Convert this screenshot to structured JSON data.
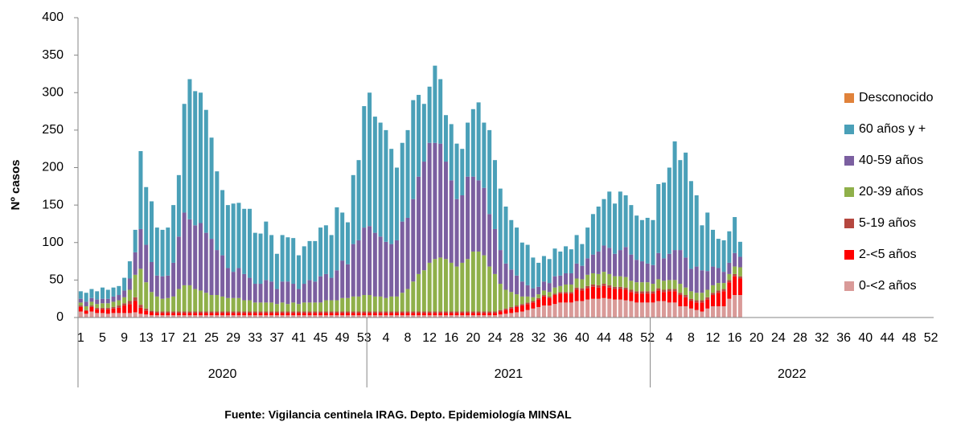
{
  "chart_data": {
    "type": "stacked_bar",
    "y_label": "Nº casos",
    "footer": "Fuente: Vigilancia centinela IRAG. Depto. Epidemiología MINSAL",
    "ylim": [
      0,
      400
    ],
    "yticks": [
      0,
      50,
      100,
      150,
      200,
      250,
      300,
      350,
      400
    ],
    "legend": "right",
    "x_groups": [
      "2020",
      "2021",
      "2022"
    ],
    "categories": [
      "1",
      null,
      null,
      null,
      "5",
      null,
      null,
      null,
      "9",
      null,
      null,
      null,
      "13",
      null,
      null,
      null,
      "17",
      null,
      null,
      null,
      "21",
      null,
      null,
      null,
      "25",
      null,
      null,
      null,
      "29",
      null,
      null,
      null,
      "33",
      null,
      null,
      null,
      "37",
      null,
      null,
      null,
      "41",
      null,
      null,
      null,
      "45",
      null,
      null,
      null,
      "49",
      null,
      null,
      null,
      "53",
      null,
      null,
      null,
      "4",
      null,
      null,
      null,
      "8",
      null,
      null,
      null,
      "12",
      null,
      null,
      null,
      "16",
      null,
      null,
      null,
      "20",
      null,
      null,
      null,
      "24",
      null,
      null,
      null,
      "28",
      null,
      null,
      null,
      "32",
      null,
      null,
      null,
      "36",
      null,
      null,
      null,
      "40",
      null,
      null,
      null,
      "44",
      null,
      null,
      null,
      "48",
      null,
      null,
      null,
      "52",
      null,
      null,
      null,
      "4",
      null,
      null,
      null,
      "8",
      null,
      null,
      null,
      "12",
      null,
      null,
      null,
      "16",
      null,
      null,
      null,
      "20",
      null,
      null,
      null,
      "24",
      null,
      null,
      null,
      "28",
      null,
      null,
      null,
      "32",
      null,
      null,
      null,
      "36",
      null,
      null,
      null,
      "40",
      null,
      null,
      null,
      "44",
      null,
      null,
      null,
      "48",
      null,
      null,
      null,
      "52"
    ],
    "series": [
      {
        "name": "0-<2 años",
        "color": "#d99a98",
        "values": [
          8,
          5,
          8,
          6,
          6,
          5,
          6,
          6,
          6,
          6,
          7,
          5,
          4,
          3,
          3,
          3,
          3,
          3,
          3,
          3,
          3,
          3,
          3,
          3,
          3,
          3,
          3,
          3,
          3,
          3,
          3,
          3,
          3,
          3,
          3,
          3,
          3,
          3,
          3,
          3,
          3,
          3,
          3,
          3,
          3,
          3,
          3,
          3,
          3,
          3,
          3,
          3,
          3,
          3,
          3,
          3,
          3,
          3,
          3,
          3,
          3,
          3,
          3,
          3,
          3,
          3,
          3,
          3,
          3,
          3,
          3,
          3,
          3,
          3,
          3,
          3,
          3,
          4,
          5,
          6,
          7,
          8,
          10,
          12,
          14,
          16,
          16,
          18,
          20,
          20,
          20,
          22,
          22,
          24,
          25,
          25,
          26,
          25,
          24,
          24,
          23,
          22,
          20,
          20,
          20,
          20,
          22,
          22,
          20,
          20,
          15,
          15,
          12,
          10,
          8,
          12,
          15,
          15,
          15,
          25,
          30,
          30,
          null,
          null,
          null,
          null,
          null,
          null,
          null,
          null,
          null,
          null,
          null,
          null,
          null,
          null,
          null,
          null,
          null,
          null,
          null,
          null,
          null,
          null,
          null,
          null,
          null,
          null,
          null,
          null,
          null,
          null,
          null,
          null,
          null,
          null,
          null
        ]
      },
      {
        "name": "2-<5 años",
        "color": "#ff0000",
        "values": [
          6,
          4,
          6,
          5,
          5,
          6,
          6,
          7,
          10,
          12,
          15,
          8,
          5,
          4,
          3,
          3,
          3,
          3,
          3,
          3,
          3,
          3,
          3,
          3,
          3,
          3,
          3,
          3,
          3,
          3,
          3,
          3,
          3,
          3,
          3,
          3,
          3,
          3,
          3,
          3,
          3,
          3,
          3,
          3,
          3,
          3,
          3,
          3,
          3,
          3,
          3,
          3,
          3,
          3,
          3,
          3,
          3,
          3,
          3,
          3,
          3,
          3,
          3,
          3,
          3,
          3,
          3,
          3,
          3,
          3,
          3,
          3,
          3,
          3,
          3,
          3,
          3,
          4,
          5,
          6,
          7,
          8,
          8,
          8,
          10,
          12,
          10,
          12,
          12,
          12,
          12,
          15,
          14,
          15,
          16,
          15,
          16,
          15,
          14,
          14,
          14,
          12,
          12,
          12,
          12,
          12,
          14,
          12,
          15,
          15,
          15,
          12,
          10,
          10,
          12,
          12,
          15,
          18,
          20,
          22,
          25,
          22,
          null,
          null,
          null,
          null,
          null,
          null,
          null,
          null,
          null,
          null,
          null,
          null,
          null,
          null,
          null,
          null,
          null,
          null,
          null,
          null,
          null,
          null,
          null,
          null,
          null,
          null,
          null,
          null,
          null,
          null,
          null,
          null,
          null,
          null,
          null
        ]
      },
      {
        "name": "5-19 años",
        "color": "#b5473f",
        "values": [
          2,
          1,
          2,
          2,
          2,
          2,
          2,
          3,
          3,
          4,
          5,
          4,
          3,
          2,
          2,
          2,
          2,
          2,
          2,
          2,
          2,
          2,
          2,
          2,
          2,
          2,
          2,
          2,
          2,
          2,
          2,
          2,
          2,
          2,
          2,
          2,
          2,
          2,
          2,
          2,
          2,
          2,
          2,
          2,
          2,
          2,
          2,
          2,
          2,
          2,
          2,
          2,
          2,
          2,
          2,
          2,
          2,
          2,
          2,
          2,
          2,
          2,
          2,
          2,
          2,
          2,
          2,
          2,
          2,
          2,
          2,
          2,
          2,
          2,
          2,
          2,
          2,
          2,
          2,
          2,
          2,
          2,
          2,
          2,
          2,
          2,
          2,
          2,
          2,
          2,
          2,
          3,
          3,
          3,
          3,
          3,
          3,
          3,
          3,
          3,
          3,
          3,
          3,
          3,
          3,
          3,
          3,
          3,
          3,
          3,
          3,
          3,
          3,
          3,
          3,
          3,
          3,
          3,
          3,
          3,
          3,
          3,
          null,
          null,
          null,
          null,
          null,
          null,
          null,
          null,
          null,
          null,
          null,
          null,
          null,
          null,
          null,
          null,
          null,
          null,
          null,
          null,
          null,
          null,
          null,
          null,
          null,
          null,
          null,
          null,
          null,
          null,
          null,
          null,
          null,
          null,
          null
        ]
      },
      {
        "name": "20-39 años",
        "color": "#8fb04a",
        "values": [
          4,
          5,
          5,
          5,
          6,
          6,
          7,
          7,
          8,
          15,
          30,
          48,
          35,
          25,
          20,
          17,
          18,
          20,
          30,
          35,
          35,
          30,
          28,
          25,
          22,
          22,
          20,
          18,
          18,
          18,
          15,
          15,
          12,
          12,
          12,
          12,
          10,
          12,
          10,
          12,
          10,
          12,
          12,
          12,
          12,
          15,
          15,
          15,
          18,
          18,
          20,
          20,
          22,
          22,
          20,
          20,
          18,
          20,
          20,
          25,
          30,
          40,
          50,
          55,
          65,
          70,
          72,
          70,
          65,
          60,
          65,
          70,
          80,
          80,
          75,
          60,
          50,
          35,
          25,
          20,
          15,
          10,
          8,
          5,
          5,
          6,
          6,
          8,
          8,
          10,
          10,
          12,
          12,
          15,
          15,
          15,
          16,
          15,
          14,
          14,
          14,
          12,
          12,
          12,
          12,
          10,
          12,
          12,
          12,
          12,
          12,
          10,
          10,
          10,
          10,
          10,
          10,
          10,
          8,
          8,
          10,
          12,
          null,
          null,
          null,
          null,
          null,
          null,
          null,
          null,
          null,
          null,
          null,
          null,
          null,
          null,
          null,
          null,
          null,
          null,
          null,
          null,
          null,
          null,
          null,
          null,
          null,
          null,
          null,
          null,
          null,
          null,
          null,
          null,
          null,
          null,
          null
        ]
      },
      {
        "name": "40-59 años",
        "color": "#7b5fa0",
        "values": [
          5,
          6,
          5,
          6,
          6,
          6,
          7,
          7,
          9,
          15,
          30,
          53,
          50,
          40,
          28,
          30,
          30,
          45,
          70,
          97,
          88,
          85,
          90,
          80,
          75,
          60,
          55,
          40,
          35,
          40,
          35,
          30,
          25,
          25,
          30,
          28,
          20,
          28,
          30,
          25,
          20,
          25,
          30,
          28,
          35,
          35,
          30,
          40,
          50,
          45,
          70,
          75,
          90,
          92,
          85,
          80,
          75,
          70,
          75,
          95,
          95,
          110,
          130,
          145,
          160,
          155,
          152,
          130,
          110,
          90,
          90,
          110,
          100,
          95,
          90,
          70,
          60,
          45,
          35,
          30,
          25,
          20,
          15,
          12,
          10,
          12,
          12,
          15,
          14,
          15,
          15,
          20,
          18,
          22,
          25,
          30,
          35,
          35,
          30,
          35,
          40,
          35,
          30,
          28,
          25,
          25,
          35,
          30,
          35,
          40,
          45,
          40,
          30,
          35,
          30,
          25,
          25,
          20,
          15,
          15,
          18,
          14,
          null,
          null,
          null,
          null,
          null,
          null,
          null,
          null,
          null,
          null,
          null,
          null,
          null,
          null,
          null,
          null,
          null,
          null,
          null,
          null,
          null,
          null,
          null,
          null,
          null,
          null,
          null,
          null,
          null,
          null,
          null,
          null,
          null,
          null,
          null
        ]
      },
      {
        "name": "60 años y +",
        "color": "#4aa0b8",
        "values": [
          10,
          12,
          12,
          11,
          15,
          12,
          12,
          12,
          17,
          23,
          30,
          104,
          77,
          81,
          64,
          62,
          64,
          77,
          82,
          145,
          187,
          179,
          174,
          164,
          135,
          105,
          87,
          84,
          91,
          87,
          87,
          92,
          68,
          67,
          78,
          62,
          47,
          62,
          59,
          61,
          45,
          50,
          52,
          54,
          65,
          65,
          57,
          84,
          64,
          56,
          92,
          107,
          162,
          178,
          155,
          152,
          149,
          127,
          97,
          105,
          117,
          132,
          109,
          77,
          75,
          103,
          86,
          62,
          75,
          74,
          62,
          72,
          90,
          104,
          87,
          112,
          92,
          82,
          76,
          66,
          64,
          52,
          54,
          41,
          32,
          34,
          32,
          37,
          32,
          36,
          32,
          38,
          29,
          41,
          54,
          60,
          62,
          75,
          67,
          78,
          69,
          66,
          59,
          55,
          61,
          60,
          92,
          101,
          115,
          145,
          120,
          140,
          117,
          95,
          60,
          78,
          49,
          39,
          42,
          42,
          48,
          20,
          null,
          null,
          null,
          null,
          null,
          null,
          null,
          null,
          null,
          null,
          null,
          null,
          null,
          null,
          null,
          null,
          null,
          null,
          null,
          null,
          null,
          null,
          null,
          null,
          null,
          null,
          null,
          null,
          null,
          null,
          null,
          null,
          null,
          null,
          null
        ]
      },
      {
        "name": "Desconocido",
        "color": "#e0823a",
        "values": [
          0,
          0,
          0,
          0,
          0,
          0,
          0,
          0,
          0,
          0,
          0,
          0,
          0,
          0,
          0,
          0,
          0,
          0,
          0,
          0,
          0,
          0,
          0,
          0,
          0,
          0,
          0,
          0,
          0,
          0,
          0,
          0,
          0,
          0,
          0,
          0,
          0,
          0,
          0,
          0,
          0,
          0,
          0,
          0,
          0,
          0,
          0,
          0,
          0,
          0,
          0,
          0,
          0,
          0,
          0,
          0,
          0,
          0,
          0,
          0,
          0,
          0,
          0,
          0,
          0,
          0,
          0,
          0,
          0,
          0,
          0,
          0,
          0,
          0,
          0,
          0,
          0,
          0,
          0,
          0,
          0,
          0,
          0,
          0,
          0,
          0,
          0,
          0,
          0,
          0,
          0,
          0,
          0,
          0,
          0,
          0,
          0,
          0,
          0,
          0,
          0,
          0,
          0,
          0,
          0,
          0,
          0,
          0,
          0,
          0,
          0,
          0,
          0,
          0,
          0,
          0,
          0,
          0,
          0,
          0,
          0,
          0,
          null,
          null,
          null,
          null,
          null,
          null,
          null,
          null,
          null,
          null,
          null,
          null,
          null,
          null,
          null,
          null,
          null,
          null,
          null,
          null,
          null,
          null,
          null,
          null,
          null,
          null,
          null,
          null,
          null,
          null,
          null,
          null,
          null,
          null,
          null
        ]
      }
    ]
  }
}
